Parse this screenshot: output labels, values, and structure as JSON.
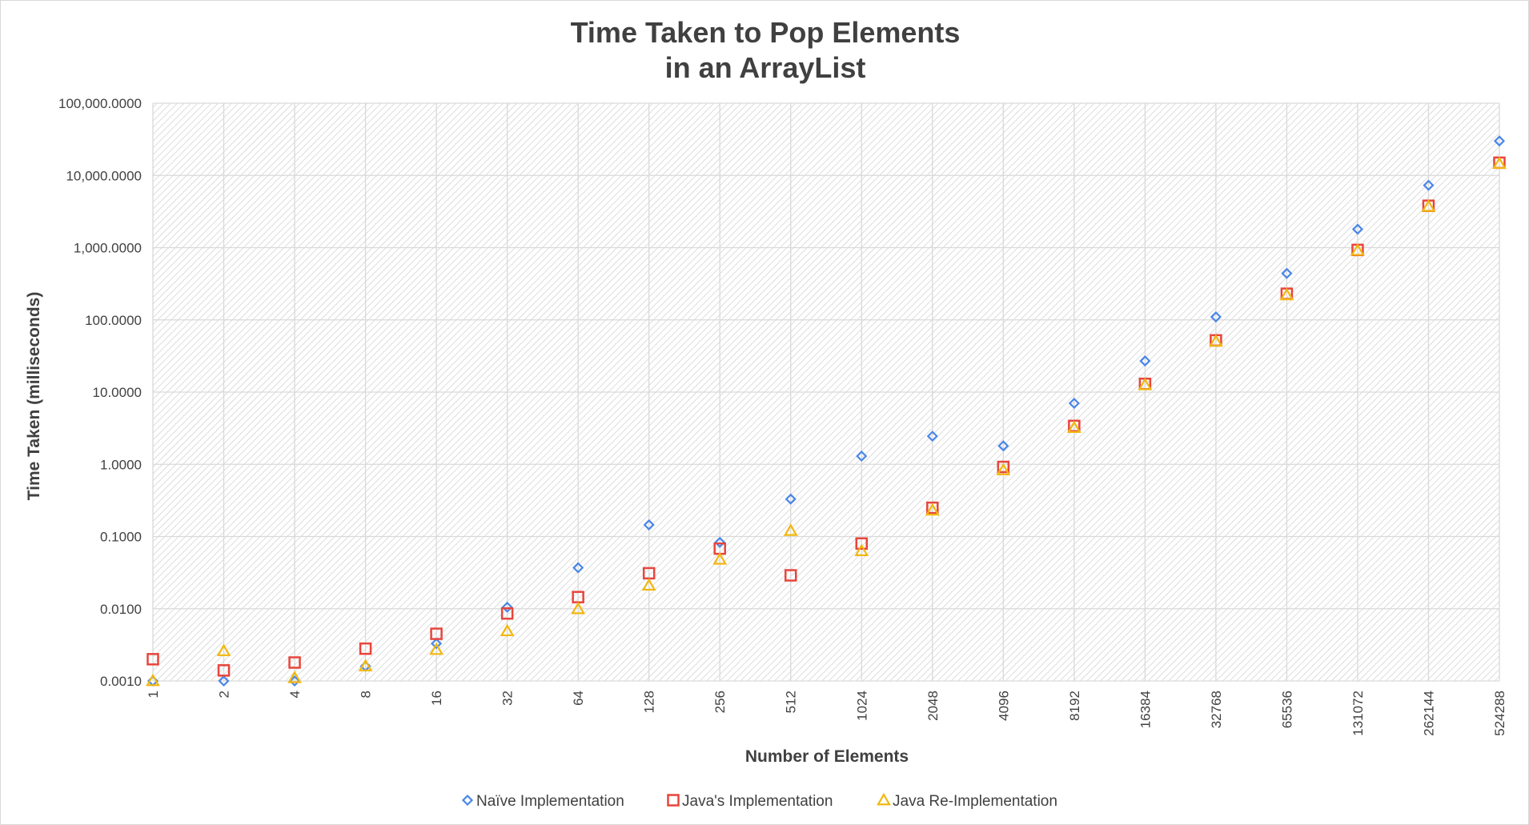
{
  "chart_data": {
    "type": "scatter",
    "title_lines": [
      "Time Taken to Pop Elements",
      "in an ArrayList"
    ],
    "xlabel": "Number of Elements",
    "ylabel": "Time Taken (milliseconds)",
    "x_scale": "log2-categorical",
    "y_scale": "log10",
    "ylim": [
      0.001,
      100000
    ],
    "grid": true,
    "plot_background": "diagonal-hatch",
    "legend_position": "bottom",
    "categories": [
      "1",
      "2",
      "4",
      "8",
      "16",
      "32",
      "64",
      "128",
      "256",
      "512",
      "1024",
      "2048",
      "4096",
      "8192",
      "16384",
      "32768",
      "65536",
      "131072",
      "262144",
      "524288"
    ],
    "y_tick_labels": [
      "0.0010",
      "0.0100",
      "0.1000",
      "1.0000",
      "10.0000",
      "100.0000",
      "1,000.0000",
      "10,000.0000",
      "100,000.0000"
    ],
    "series": [
      {
        "name": "Naïve Implementation",
        "marker": "diamond",
        "color": "#4a86e8",
        "values": [
          0.001,
          0.001,
          0.001,
          0.0016,
          0.0033,
          0.0105,
          0.037,
          0.145,
          0.083,
          0.33,
          1.3,
          2.45,
          1.8,
          7.0,
          27.0,
          110.0,
          440.0,
          1800.0,
          7300.0,
          30000.0
        ]
      },
      {
        "name": "Java's Implementation",
        "marker": "square",
        "color": "#e8453c",
        "values": [
          0.002,
          0.0014,
          0.0018,
          0.0028,
          0.0045,
          0.0086,
          0.0145,
          0.031,
          0.068,
          0.029,
          0.08,
          0.25,
          0.92,
          3.4,
          13.0,
          52.0,
          230.0,
          930.0,
          3800.0,
          15000.0
        ]
      },
      {
        "name": "Java Re-Implementation",
        "marker": "triangle",
        "color": "#f2b70f",
        "values": [
          0.001,
          0.0026,
          0.0011,
          0.0016,
          0.0027,
          0.0049,
          0.0099,
          0.021,
          0.048,
          0.12,
          0.063,
          0.23,
          0.83,
          3.2,
          12.5,
          50.0,
          220.0,
          910.0,
          3700.0,
          14500.0
        ]
      }
    ]
  }
}
